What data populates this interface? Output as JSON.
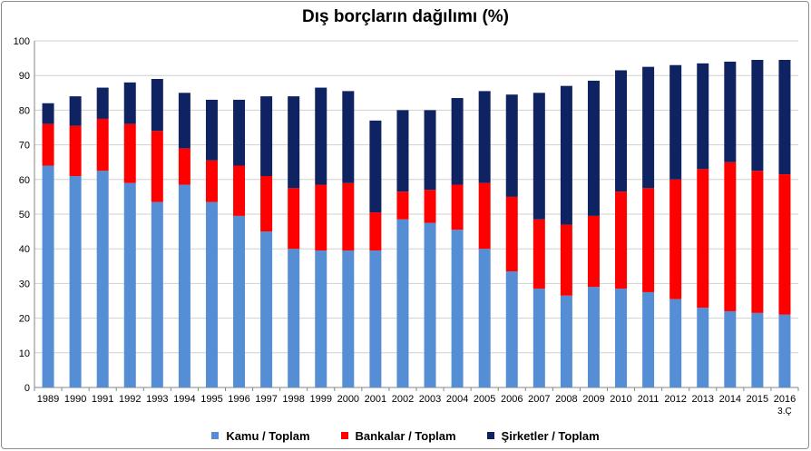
{
  "chart_data": {
    "type": "bar",
    "stacked": true,
    "title": "Dış borçların dağılımı (%)",
    "xlabel": "",
    "ylabel": "",
    "ylim": [
      0,
      100
    ],
    "yticks": [
      0,
      10,
      20,
      30,
      40,
      50,
      60,
      70,
      80,
      90,
      100
    ],
    "grid": true,
    "legend_position": "bottom",
    "categories": [
      "1989",
      "1990",
      "1991",
      "1992",
      "1993",
      "1994",
      "1995",
      "1996",
      "1997",
      "1998",
      "1999",
      "2000",
      "2001",
      "2002",
      "2003",
      "2004",
      "2005",
      "2006",
      "2007",
      "2008",
      "2009",
      "2010",
      "2011",
      "2012",
      "2013",
      "2014",
      "2015",
      "2016"
    ],
    "category_sublabels": {
      "27": "3.Ç"
    },
    "series": [
      {
        "name": "Kamu / Toplam",
        "color": "#558ed5",
        "values": [
          64.0,
          61.0,
          62.5,
          59.0,
          53.5,
          58.5,
          53.5,
          49.5,
          45.0,
          40.0,
          39.5,
          39.5,
          39.5,
          48.5,
          47.5,
          45.5,
          40.0,
          33.5,
          28.5,
          26.5,
          29.0,
          28.5,
          27.5,
          25.5,
          23.0,
          22.0,
          21.5,
          21.0
        ]
      },
      {
        "name": "Bankalar / Toplam",
        "color": "#ff0000",
        "values": [
          12.0,
          14.5,
          15.0,
          17.0,
          20.5,
          10.5,
          12.0,
          14.5,
          16.0,
          17.5,
          19.0,
          19.5,
          11.0,
          8.0,
          9.5,
          13.0,
          19.0,
          21.5,
          20.0,
          20.5,
          20.5,
          28.0,
          30.0,
          34.5,
          40.0,
          43.0,
          41.0,
          40.5
        ]
      },
      {
        "name": "Şirketler / Toplam",
        "color": "#0f2261",
        "values": [
          6.0,
          8.5,
          9.0,
          12.0,
          15.0,
          16.0,
          17.5,
          19.0,
          23.0,
          26.5,
          28.0,
          26.5,
          26.5,
          23.5,
          23.0,
          25.0,
          26.5,
          29.5,
          36.5,
          40.0,
          39.0,
          35.0,
          35.0,
          33.0,
          30.5,
          29.0,
          32.0,
          33.0
        ]
      }
    ]
  }
}
